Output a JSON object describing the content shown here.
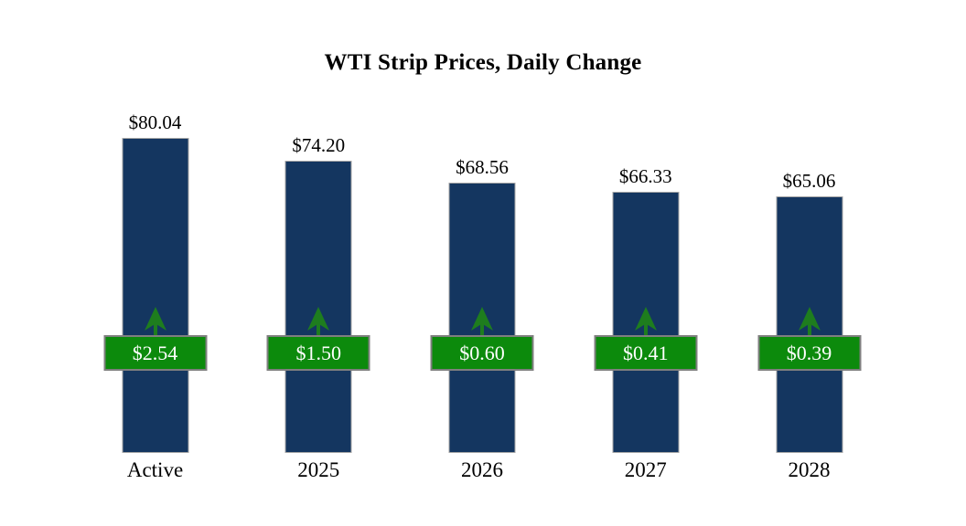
{
  "chart_data": {
    "type": "bar",
    "title": "WTI Strip Prices, Daily Change",
    "categories": [
      "Active",
      "2025",
      "2026",
      "2027",
      "2028"
    ],
    "values": [
      80.04,
      74.2,
      68.56,
      66.33,
      65.06
    ],
    "value_labels": [
      "$80.04",
      "$74.20",
      "$68.56",
      "$66.33",
      "$65.06"
    ],
    "daily_changes": [
      2.54,
      1.5,
      0.6,
      0.41,
      0.39
    ],
    "change_labels": [
      "$2.54",
      "$1.50",
      "$0.60",
      "$0.41",
      "$0.39"
    ],
    "change_direction": "up",
    "xlabel": "",
    "ylabel": "",
    "ylim": [
      0,
      85
    ],
    "grid": false,
    "legend": false,
    "colors": {
      "bar_fill": "#143660",
      "bar_border": "#A6A6A6",
      "badge_fill": "#0C8A0C",
      "badge_border": "#7F7F7F",
      "badge_text": "#FFFFFF",
      "arrow": "#1E7D1E",
      "label_text": "#000000",
      "background": "#FFFFFF"
    }
  }
}
